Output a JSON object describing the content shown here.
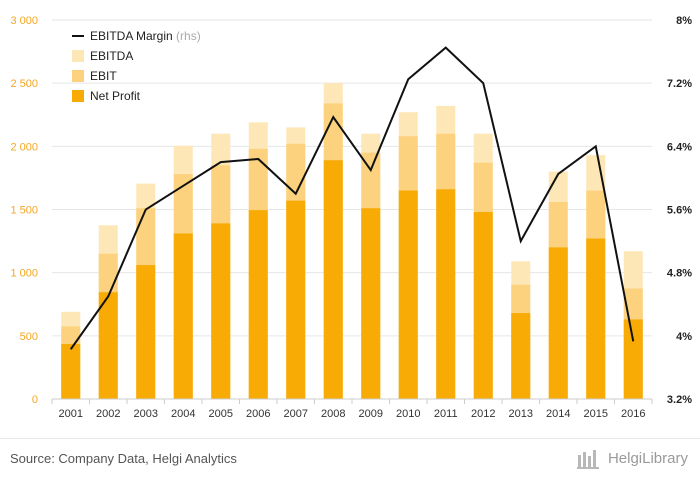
{
  "chart_data": {
    "type": "bar",
    "stacked_overlap": true,
    "categories": [
      "2001",
      "2002",
      "2003",
      "2004",
      "2005",
      "2006",
      "2007",
      "2008",
      "2009",
      "2010",
      "2011",
      "2012",
      "2013",
      "2014",
      "2015",
      "2016"
    ],
    "series": [
      {
        "name": "EBITDA",
        "color": "#fde7b6",
        "values": [
          690,
          1375,
          1705,
          2005,
          2100,
          2190,
          2150,
          2500,
          2100,
          2270,
          2320,
          2100,
          1090,
          1800,
          1930,
          1170
        ]
      },
      {
        "name": "EBIT",
        "color": "#fdd27e",
        "values": [
          575,
          1150,
          1510,
          1780,
          1850,
          1980,
          2020,
          2340,
          1950,
          2080,
          2100,
          1870,
          905,
          1560,
          1650,
          875
        ]
      },
      {
        "name": "Net Profit",
        "color": "#f7ab04",
        "values": [
          435,
          845,
          1060,
          1310,
          1390,
          1495,
          1570,
          1890,
          1510,
          1650,
          1660,
          1480,
          680,
          1200,
          1270,
          630
        ]
      }
    ],
    "line_series": {
      "name": "EBITDA Margin",
      "axis": "rhs",
      "color": "#111111",
      "values": [
        3.83,
        4.5,
        5.6,
        5.9,
        6.2,
        6.24,
        5.8,
        6.77,
        6.1,
        7.25,
        7.65,
        7.2,
        5.2,
        6.05,
        6.4,
        3.93
      ]
    },
    "y_left": {
      "min": 0,
      "max": 3000,
      "ticks": [
        0,
        500,
        1000,
        1500,
        2000,
        2500,
        3000
      ],
      "tick_labels": [
        "0",
        "500",
        "1 000",
        "1 500",
        "2 000",
        "2 500",
        "3 000"
      ]
    },
    "y_right": {
      "min": 3.2,
      "max": 8.0,
      "ticks": [
        3.2,
        4.0,
        4.8,
        5.6,
        6.4,
        7.2,
        8.0
      ],
      "tick_labels": [
        "3.2%",
        "4%",
        "4.8%",
        "5.6%",
        "6.4%",
        "7.2%",
        "8%"
      ]
    },
    "legend": {
      "position": "top-left",
      "items": [
        {
          "label": "EBITDA Margin",
          "suffix": "(rhs)",
          "kind": "line",
          "color": "#111111"
        },
        {
          "label": "EBITDA",
          "kind": "box",
          "color": "#fde7b6"
        },
        {
          "label": "EBIT",
          "kind": "box",
          "color": "#fdd27e"
        },
        {
          "label": "Net Profit",
          "kind": "box",
          "color": "#f7ab04"
        }
      ]
    }
  },
  "footer": {
    "source": "Source: Company Data, Helgi Analytics",
    "brand": "HelgiLibrary"
  }
}
